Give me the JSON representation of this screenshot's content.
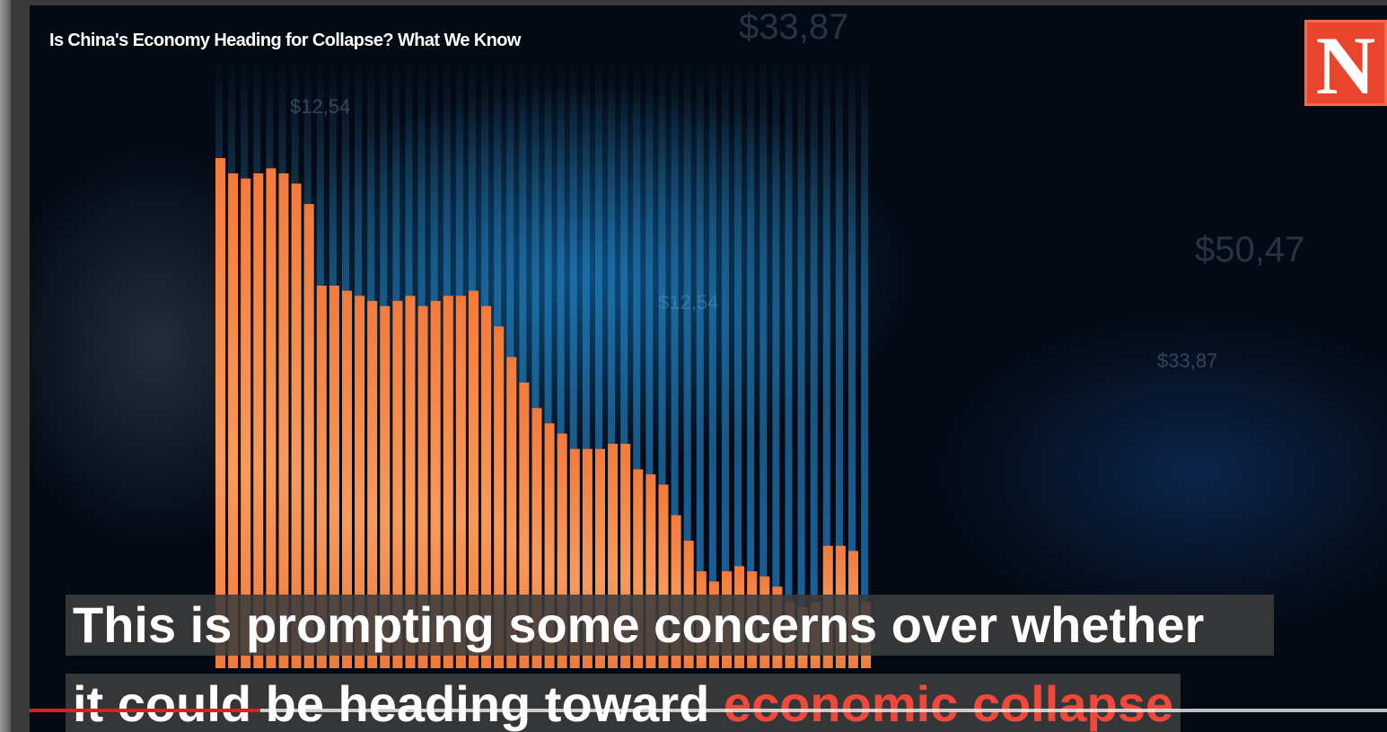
{
  "video": {
    "title": "Is China's Economy Heading for Collapse? What We Know",
    "logo_letter": "N",
    "caption_line1": "This is prompting some concerns over whether",
    "caption_line2_plain": "it could be heading toward ",
    "caption_line2_highlight": "economic collapse",
    "progress_fraction": 0.17,
    "background_price_labels": [
      "$33,87",
      "$12,54",
      "$12,54",
      "$50,47",
      "$33,87"
    ]
  },
  "colors": {
    "bars": "#f07a3a",
    "highlight": "#f0483a",
    "progress": "#e01e1e",
    "logo": "#e8452c"
  },
  "chart_data": {
    "type": "bar",
    "series": [
      {
        "values": [
          100,
          97,
          96,
          97,
          98,
          97,
          95,
          91,
          75,
          75,
          74,
          73,
          72,
          71,
          72,
          73,
          71,
          72,
          73,
          73,
          74,
          71,
          67,
          61,
          56,
          51,
          48,
          46,
          43,
          43,
          43,
          44,
          44,
          39,
          38,
          36,
          30,
          25,
          19,
          17,
          19,
          20,
          19,
          18,
          16,
          13,
          12,
          13,
          24,
          24,
          23,
          13
        ]
      }
    ],
    "ylim": [
      0,
      100
    ],
    "grid": false
  }
}
